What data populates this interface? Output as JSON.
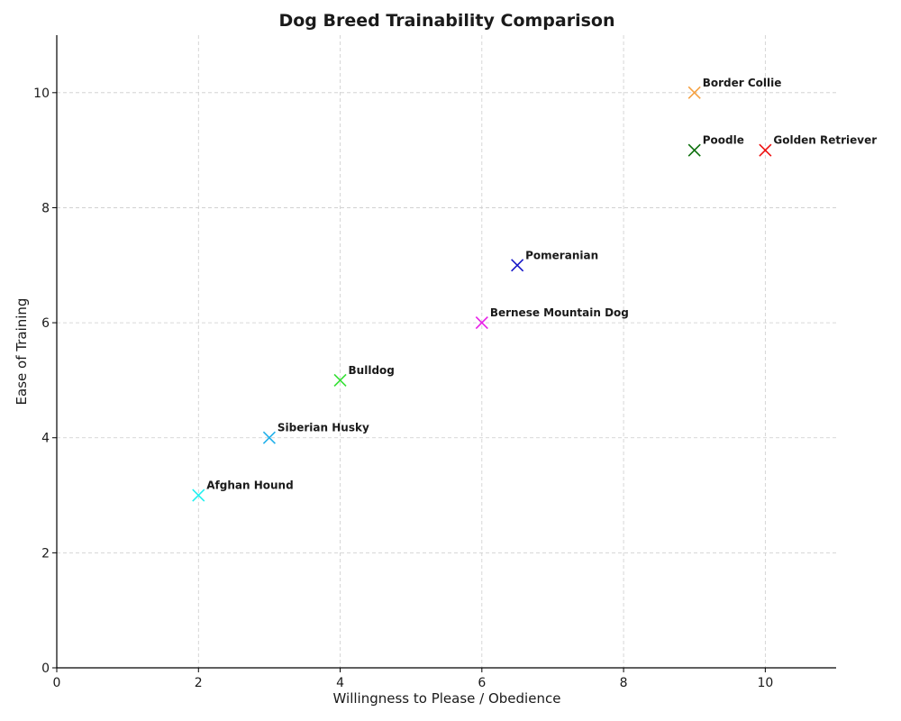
{
  "chart_data": {
    "type": "scatter",
    "title": "Dog Breed Trainability Comparison",
    "xlabel": "Willingness to Please / Obedience",
    "ylabel": "Ease of Training",
    "xlim": [
      0,
      11
    ],
    "ylim": [
      0,
      11
    ],
    "xticks": [
      0,
      2,
      4,
      6,
      8,
      10
    ],
    "yticks": [
      0,
      2,
      4,
      6,
      8,
      10
    ],
    "grid": true,
    "marker": "x",
    "points": [
      {
        "label": "Border Collie",
        "x": 9,
        "y": 10,
        "color": "#f5a142"
      },
      {
        "label": "Poodle",
        "x": 9,
        "y": 9,
        "color": "#0a6e0a"
      },
      {
        "label": "Golden Retriever",
        "x": 10,
        "y": 9,
        "color": "#ee1111"
      },
      {
        "label": "Pomeranian",
        "x": 6.5,
        "y": 7,
        "color": "#1818c8"
      },
      {
        "label": "Bernese Mountain Dog",
        "x": 6,
        "y": 6,
        "color": "#e81ee8"
      },
      {
        "label": "Bulldog",
        "x": 4,
        "y": 5,
        "color": "#35e035"
      },
      {
        "label": "Siberian Husky",
        "x": 3,
        "y": 4,
        "color": "#21b0ea"
      },
      {
        "label": "Afghan Hound",
        "x": 2,
        "y": 3,
        "color": "#22f0f0"
      }
    ]
  }
}
